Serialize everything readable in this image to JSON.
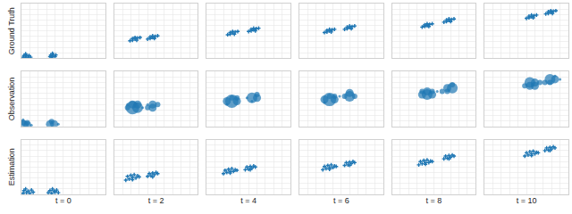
{
  "chart_data": [
    {
      "type": "scatter",
      "ylabel": "Ground Truth",
      "x": [
        0.2,
        0.5,
        0.8,
        1.1,
        0.3,
        0.6,
        0.9,
        0.5,
        3.4,
        3.7,
        4.0,
        3.5,
        3.8,
        3.7,
        4.1,
        3.6
      ],
      "y": [
        0.2,
        0.2,
        0.2,
        0.2,
        0.5,
        0.5,
        0.5,
        0.8,
        0.3,
        0.3,
        0.3,
        0.6,
        0.6,
        0.9,
        0.6,
        0.2
      ],
      "xlim": [
        0,
        10
      ],
      "ylim": [
        0,
        10
      ],
      "xticks": [
        0,
        1,
        2,
        3,
        4,
        5,
        6,
        7,
        8,
        9,
        10
      ],
      "yticks": [
        0,
        1,
        2,
        3,
        4,
        5,
        6,
        7,
        8,
        9,
        10
      ],
      "grid": true,
      "tick_labels": false,
      "color": "#1f77b4",
      "marker": "cross"
    },
    {
      "type": "scatter",
      "x": [
        1.9,
        2.2,
        2.5,
        2.8,
        3.1,
        2.2,
        2.7,
        2.5,
        4.0,
        4.3,
        4.6,
        4.9,
        5.2,
        4.3,
        4.8,
        4.6
      ],
      "y": [
        3.2,
        3.3,
        3.5,
        3.7,
        3.8,
        3.6,
        3.3,
        3.8,
        3.5,
        3.6,
        3.8,
        4.0,
        4.1,
        3.9,
        3.6,
        4.1
      ],
      "xlim": [
        0,
        10
      ],
      "ylim": [
        0,
        10
      ],
      "xticks": [
        0,
        1,
        2,
        3,
        4,
        5,
        6,
        7,
        8,
        9,
        10
      ],
      "yticks": [
        0,
        1,
        2,
        3,
        4,
        5,
        6,
        7,
        8,
        9,
        10
      ],
      "grid": true,
      "tick_labels": false,
      "color": "#1f77b4",
      "marker": "cross"
    },
    {
      "type": "scatter",
      "x": [
        2.5,
        2.8,
        3.1,
        3.4,
        3.7,
        2.8,
        3.3,
        3.1,
        5.0,
        5.3,
        5.6,
        5.9,
        6.2,
        5.3,
        5.8,
        5.6
      ],
      "y": [
        4.3,
        4.4,
        4.6,
        4.8,
        4.9,
        4.7,
        4.4,
        4.9,
        4.9,
        5.0,
        5.2,
        5.4,
        5.5,
        5.3,
        5.0,
        5.5
      ],
      "xlim": [
        0,
        10
      ],
      "ylim": [
        0,
        10
      ],
      "xticks": [
        0,
        1,
        2,
        3,
        4,
        5,
        6,
        7,
        8,
        9,
        10
      ],
      "yticks": [
        0,
        1,
        2,
        3,
        4,
        5,
        6,
        7,
        8,
        9,
        10
      ],
      "grid": true,
      "tick_labels": false,
      "color": "#1f77b4",
      "marker": "cross"
    },
    {
      "type": "scatter",
      "x": [
        3.0,
        3.3,
        3.6,
        3.9,
        4.2,
        3.3,
        3.8,
        3.6,
        5.4,
        5.7,
        6.0,
        6.3,
        6.6,
        5.7,
        6.2,
        6.0
      ],
      "y": [
        4.7,
        4.8,
        5.0,
        5.2,
        5.3,
        5.1,
        4.8,
        5.3,
        5.3,
        5.4,
        5.6,
        5.8,
        5.9,
        5.7,
        5.4,
        5.9
      ],
      "xlim": [
        0,
        10
      ],
      "ylim": [
        0,
        10
      ],
      "xticks": [
        0,
        1,
        2,
        3,
        4,
        5,
        6,
        7,
        8,
        9,
        10
      ],
      "yticks": [
        0,
        1,
        2,
        3,
        4,
        5,
        6,
        7,
        8,
        9,
        10
      ],
      "grid": true,
      "tick_labels": false,
      "color": "#1f77b4",
      "marker": "cross"
    },
    {
      "type": "scatter",
      "x": [
        3.6,
        3.9,
        4.2,
        4.5,
        4.8,
        3.9,
        4.4,
        4.2,
        6.2,
        6.5,
        6.8,
        7.1,
        7.4,
        6.5,
        7.0,
        6.8
      ],
      "y": [
        5.7,
        5.8,
        6.0,
        6.2,
        6.3,
        6.1,
        5.8,
        6.3,
        6.6,
        6.7,
        6.9,
        7.1,
        7.2,
        7.0,
        6.7,
        7.2
      ],
      "xlim": [
        0,
        10
      ],
      "ylim": [
        0,
        10
      ],
      "xticks": [
        0,
        1,
        2,
        3,
        4,
        5,
        6,
        7,
        8,
        9,
        10
      ],
      "yticks": [
        0,
        1,
        2,
        3,
        4,
        5,
        6,
        7,
        8,
        9,
        10
      ],
      "grid": true,
      "tick_labels": false,
      "color": "#1f77b4",
      "marker": "cross"
    },
    {
      "type": "scatter",
      "x": [
        5.0,
        5.3,
        5.6,
        5.9,
        6.2,
        5.3,
        5.8,
        5.6,
        7.3,
        7.6,
        7.9,
        8.2,
        8.5,
        7.6,
        8.1,
        7.9
      ],
      "y": [
        7.3,
        7.4,
        7.6,
        7.8,
        7.9,
        7.7,
        7.4,
        7.9,
        8.1,
        8.2,
        8.4,
        8.6,
        8.7,
        8.5,
        8.2,
        8.7
      ],
      "xlim": [
        0,
        10
      ],
      "ylim": [
        0,
        10
      ],
      "xticks": [
        0,
        1,
        2,
        3,
        4,
        5,
        6,
        7,
        8,
        9,
        10
      ],
      "yticks": [
        0,
        1,
        2,
        3,
        4,
        5,
        6,
        7,
        8,
        9,
        10
      ],
      "grid": true,
      "tick_labels": false,
      "color": "#1f77b4",
      "marker": "cross"
    },
    {
      "type": "scatter",
      "ylabel": "Observation",
      "x": [
        0.2,
        0.7,
        0.2,
        0.7,
        1.2,
        3.4,
        3.9,
        3.6,
        4.4,
        0.2
      ],
      "y": [
        0.2,
        0.2,
        0.7,
        0.7,
        0.2,
        0.4,
        0.4,
        0.9,
        0.4,
        1.2
      ],
      "sizes": [
        4,
        3,
        2,
        2,
        1,
        3,
        3,
        2,
        1,
        1
      ],
      "xlim": [
        0,
        10
      ],
      "ylim": [
        0,
        10
      ],
      "xticks": [
        0,
        1,
        2,
        3,
        4,
        5,
        6,
        7,
        8,
        9,
        10
      ],
      "yticks": [
        0,
        1,
        2,
        3,
        4,
        5,
        6,
        7,
        8,
        9,
        10
      ],
      "grid": true,
      "tick_labels": false,
      "color": "#1f77b4",
      "marker": "circle"
    },
    {
      "type": "scatter",
      "x": [
        1.6,
        2.2,
        2.8,
        2.2,
        2.8,
        1.6,
        3.4,
        4.0,
        4.6,
        4.6,
        5.2,
        4.0
      ],
      "y": [
        3.4,
        3.4,
        3.4,
        4.0,
        4.0,
        4.0,
        3.4,
        3.4,
        3.4,
        4.0,
        4.0,
        4.0
      ],
      "sizes": [
        2,
        5,
        4,
        3,
        3,
        1,
        1,
        2,
        3,
        3,
        2,
        1
      ],
      "xlim": [
        0,
        10
      ],
      "ylim": [
        0,
        10
      ],
      "xticks": [
        0,
        1,
        2,
        3,
        4,
        5,
        6,
        7,
        8,
        9,
        10
      ],
      "yticks": [
        0,
        1,
        2,
        3,
        4,
        5,
        6,
        7,
        8,
        9,
        10
      ],
      "grid": true,
      "tick_labels": false,
      "color": "#1f77b4",
      "marker": "circle"
    },
    {
      "type": "scatter",
      "x": [
        2.4,
        3.0,
        3.6,
        3.0,
        2.4,
        3.6,
        5.4,
        6.0,
        5.4,
        6.0,
        4.8
      ],
      "y": [
        4.6,
        4.6,
        4.6,
        5.2,
        4.0,
        5.2,
        5.2,
        5.2,
        4.6,
        5.8,
        5.2
      ],
      "sizes": [
        3,
        5,
        3,
        2,
        1,
        2,
        4,
        3,
        1,
        2,
        1
      ],
      "xlim": [
        0,
        10
      ],
      "ylim": [
        0,
        10
      ],
      "xticks": [
        0,
        1,
        2,
        3,
        4,
        5,
        6,
        7,
        8,
        9,
        10
      ],
      "yticks": [
        0,
        1,
        2,
        3,
        4,
        5,
        6,
        7,
        8,
        9,
        10
      ],
      "grid": true,
      "tick_labels": false,
      "color": "#1f77b4",
      "marker": "circle"
    },
    {
      "type": "scatter",
      "x": [
        3.0,
        3.6,
        4.2,
        3.6,
        3.0,
        4.2,
        5.4,
        6.0,
        6.6,
        6.0,
        4.8
      ],
      "y": [
        4.9,
        4.9,
        4.9,
        5.5,
        4.3,
        5.5,
        5.5,
        5.5,
        5.5,
        6.1,
        5.5
      ],
      "sizes": [
        3,
        5,
        3,
        2,
        1,
        2,
        2,
        4,
        2,
        3,
        1
      ],
      "xlim": [
        0,
        10
      ],
      "ylim": [
        0,
        10
      ],
      "xticks": [
        0,
        1,
        2,
        3,
        4,
        5,
        6,
        7,
        8,
        9,
        10
      ],
      "yticks": [
        0,
        1,
        2,
        3,
        4,
        5,
        6,
        7,
        8,
        9,
        10
      ],
      "grid": true,
      "tick_labels": false,
      "color": "#1f77b4",
      "marker": "circle"
    },
    {
      "type": "scatter",
      "x": [
        3.6,
        4.2,
        4.8,
        4.2,
        3.6,
        4.8,
        6.0,
        6.6,
        7.2,
        6.6,
        7.2,
        5.4
      ],
      "y": [
        5.8,
        5.8,
        5.8,
        6.4,
        6.4,
        6.4,
        6.4,
        7.0,
        7.0,
        6.4,
        7.6,
        6.4
      ],
      "sizes": [
        3,
        4,
        3,
        3,
        2,
        2,
        2,
        3,
        4,
        2,
        2,
        1
      ],
      "xlim": [
        0,
        10
      ],
      "ylim": [
        0,
        10
      ],
      "xticks": [
        0,
        1,
        2,
        3,
        4,
        5,
        6,
        7,
        8,
        9,
        10
      ],
      "yticks": [
        0,
        1,
        2,
        3,
        4,
        5,
        6,
        7,
        8,
        9,
        10
      ],
      "grid": true,
      "tick_labels": false,
      "color": "#1f77b4",
      "marker": "circle"
    },
    {
      "type": "scatter",
      "x": [
        4.8,
        5.4,
        6.0,
        5.4,
        6.0,
        6.6,
        7.2,
        7.8,
        8.4,
        7.8,
        8.4,
        9.0
      ],
      "y": [
        7.4,
        7.4,
        7.4,
        8.0,
        8.0,
        8.0,
        8.0,
        8.6,
        8.6,
        8.0,
        9.2,
        8.6
      ],
      "sizes": [
        2,
        3,
        3,
        4,
        3,
        2,
        2,
        4,
        3,
        2,
        1,
        1
      ],
      "xlim": [
        0,
        10
      ],
      "ylim": [
        0,
        10
      ],
      "xticks": [
        0,
        1,
        2,
        3,
        4,
        5,
        6,
        7,
        8,
        9,
        10
      ],
      "yticks": [
        0,
        1,
        2,
        3,
        4,
        5,
        6,
        7,
        8,
        9,
        10
      ],
      "grid": true,
      "tick_labels": false,
      "color": "#1f77b4",
      "marker": "circle"
    },
    {
      "type": "scatter",
      "ylabel": "Estimation",
      "xlabel": "t = 0",
      "x": [
        0.2,
        0.6,
        1.0,
        1.4,
        0.3,
        0.8,
        0.5,
        1.2,
        3.2,
        3.6,
        4.0,
        4.4,
        3.4,
        3.9,
        4.2,
        3.7
      ],
      "y": [
        0.2,
        0.3,
        0.2,
        0.4,
        0.7,
        0.6,
        1.0,
        0.8,
        0.3,
        0.2,
        0.4,
        0.3,
        0.7,
        0.6,
        0.8,
        1.0
      ],
      "xlim": [
        0,
        10
      ],
      "ylim": [
        0,
        10
      ],
      "xticks": [
        0,
        1,
        2,
        3,
        4,
        5,
        6,
        7,
        8,
        9,
        10
      ],
      "yticks": [
        0,
        1,
        2,
        3,
        4,
        5,
        6,
        7,
        8,
        9,
        10
      ],
      "grid": true,
      "tick_labels": false,
      "color": "#1f77b4",
      "marker": "cross"
    },
    {
      "type": "scatter",
      "xlabel": "t = 2",
      "x": [
        1.4,
        1.8,
        2.2,
        2.6,
        3.0,
        1.6,
        2.0,
        2.4,
        2.8,
        2.2,
        4.0,
        4.4,
        4.8,
        5.2,
        4.2,
        4.6,
        5.0,
        4.6
      ],
      "y": [
        2.6,
        2.8,
        2.7,
        3.0,
        3.2,
        3.3,
        3.5,
        3.6,
        3.4,
        3.1,
        3.3,
        3.4,
        3.6,
        3.8,
        3.8,
        3.9,
        4.0,
        3.2
      ],
      "xlim": [
        0,
        10
      ],
      "ylim": [
        0,
        10
      ],
      "xticks": [
        0,
        1,
        2,
        3,
        4,
        5,
        6,
        7,
        8,
        9,
        10
      ],
      "yticks": [
        0,
        1,
        2,
        3,
        4,
        5,
        6,
        7,
        8,
        9,
        10
      ],
      "grid": true,
      "tick_labels": false,
      "color": "#1f77b4",
      "marker": "cross"
    },
    {
      "type": "scatter",
      "xlabel": "t = 4",
      "x": [
        2.0,
        2.4,
        2.8,
        3.2,
        3.6,
        2.2,
        2.6,
        3.0,
        3.4,
        2.8,
        4.6,
        5.0,
        5.4,
        5.8,
        4.8,
        5.2,
        5.6,
        5.2
      ],
      "y": [
        3.8,
        4.0,
        3.9,
        4.2,
        4.4,
        4.4,
        4.6,
        4.7,
        4.5,
        4.2,
        4.5,
        4.6,
        4.8,
        5.0,
        5.0,
        5.1,
        5.2,
        4.5
      ],
      "xlim": [
        0,
        10
      ],
      "ylim": [
        0,
        10
      ],
      "xticks": [
        0,
        1,
        2,
        3,
        4,
        5,
        6,
        7,
        8,
        9,
        10
      ],
      "yticks": [
        0,
        1,
        2,
        3,
        4,
        5,
        6,
        7,
        8,
        9,
        10
      ],
      "grid": true,
      "tick_labels": false,
      "color": "#1f77b4",
      "marker": "cross"
    },
    {
      "type": "scatter",
      "xlabel": "t = 6",
      "x": [
        2.8,
        3.2,
        3.6,
        4.0,
        4.4,
        3.0,
        3.4,
        3.8,
        4.2,
        3.6,
        5.4,
        5.8,
        6.2,
        6.6,
        5.6,
        6.0,
        6.4,
        6.0
      ],
      "y": [
        4.5,
        4.7,
        4.6,
        4.9,
        5.1,
        5.1,
        5.3,
        5.4,
        5.2,
        4.9,
        5.3,
        5.4,
        5.6,
        5.8,
        5.8,
        5.9,
        6.0,
        5.3
      ],
      "xlim": [
        0,
        10
      ],
      "ylim": [
        0,
        10
      ],
      "xticks": [
        0,
        1,
        2,
        3,
        4,
        5,
        6,
        7,
        8,
        9,
        10
      ],
      "yticks": [
        0,
        1,
        2,
        3,
        4,
        5,
        6,
        7,
        8,
        9,
        10
      ],
      "grid": true,
      "tick_labels": false,
      "color": "#1f77b4",
      "marker": "cross"
    },
    {
      "type": "scatter",
      "xlabel": "t = 8",
      "x": [
        3.2,
        3.6,
        4.0,
        4.4,
        4.8,
        3.4,
        3.8,
        4.2,
        4.6,
        4.0,
        6.2,
        6.6,
        7.0,
        7.4,
        6.4,
        6.8,
        7.2,
        6.8
      ],
      "y": [
        5.4,
        5.6,
        5.5,
        5.8,
        6.0,
        6.0,
        6.2,
        6.3,
        6.1,
        5.8,
        6.5,
        6.6,
        6.8,
        7.0,
        7.0,
        7.1,
        7.2,
        6.5
      ],
      "xlim": [
        0,
        10
      ],
      "ylim": [
        0,
        10
      ],
      "xticks": [
        0,
        1,
        2,
        3,
        4,
        5,
        6,
        7,
        8,
        9,
        10
      ],
      "yticks": [
        0,
        1,
        2,
        3,
        4,
        5,
        6,
        7,
        8,
        9,
        10
      ],
      "grid": true,
      "tick_labels": false,
      "color": "#1f77b4",
      "marker": "cross"
    },
    {
      "type": "scatter",
      "xlabel": "t = 10",
      "x": [
        4.8,
        5.2,
        5.6,
        6.0,
        6.4,
        5.0,
        5.4,
        5.8,
        6.2,
        5.6,
        7.2,
        7.6,
        8.0,
        8.4,
        7.4,
        7.8,
        8.2,
        7.8
      ],
      "y": [
        7.0,
        7.2,
        7.1,
        7.4,
        7.6,
        7.6,
        7.8,
        7.9,
        7.7,
        7.4,
        8.0,
        8.1,
        8.3,
        8.5,
        8.5,
        8.6,
        8.7,
        8.0
      ],
      "xlim": [
        0,
        10
      ],
      "ylim": [
        0,
        10
      ],
      "xticks": [
        0,
        1,
        2,
        3,
        4,
        5,
        6,
        7,
        8,
        9,
        10
      ],
      "yticks": [
        0,
        1,
        2,
        3,
        4,
        5,
        6,
        7,
        8,
        9,
        10
      ],
      "grid": true,
      "tick_labels": false,
      "color": "#1f77b4",
      "marker": "cross"
    }
  ]
}
